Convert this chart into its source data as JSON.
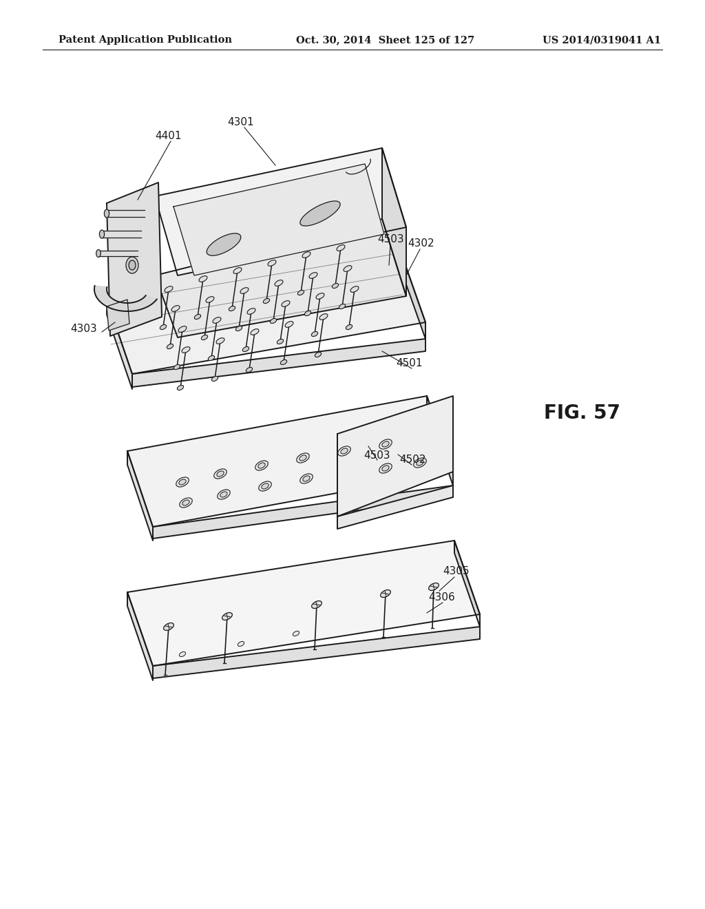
{
  "header_left": "Patent Application Publication",
  "header_middle": "Oct. 30, 2014  Sheet 125 of 127",
  "header_right": "US 2014/0319041 A1",
  "figure_label": "FIG. 57",
  "background_color": "#ffffff",
  "line_color": "#1a1a1a",
  "header_fontsize": 10.5,
  "figure_label_fontsize": 20,
  "label_fontsize": 11
}
